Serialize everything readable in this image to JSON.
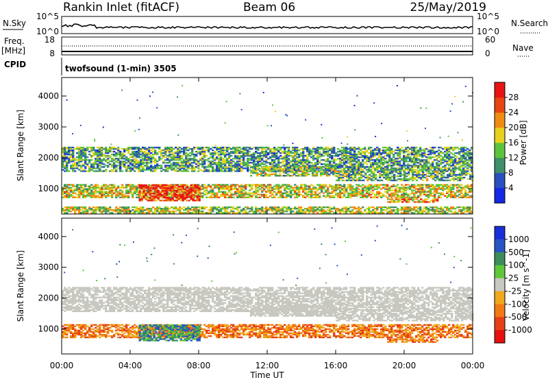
{
  "header": {
    "title": "Rankin Inlet (fitACF)",
    "beam": "Beam 06",
    "date": "25/May/2019"
  },
  "panels": {
    "nsky": {
      "left_label": "N.Sky",
      "left_ticks": [
        "10^5",
        "10^0"
      ],
      "right_label": "N.Search",
      "right_ticks": [
        "10^5",
        "10^0"
      ]
    },
    "freq": {
      "left_label_1": "Freq.",
      "left_label_2": "[MHz]",
      "left_ticks": [
        "18",
        "8"
      ],
      "right_label": "Nave",
      "right_ticks": [
        "60",
        "0"
      ]
    },
    "cpid": {
      "label": "CPID",
      "text": "twofsound (1-min) 3505"
    }
  },
  "colors": {
    "power_scale": [
      "#1428e6",
      "#2a4fc0",
      "#3f8f6a",
      "#5cc43c",
      "#e6d21e",
      "#f08c14",
      "#e64612",
      "#e61414"
    ],
    "velocity_scale": [
      "#1a2fd8",
      "#2755c4",
      "#3c8c5c",
      "#5ec83a",
      "#c8c8c0",
      "#f0a81c",
      "#f07a14",
      "#e64018",
      "#e61010"
    ],
    "ground_scatter": "#c8c8c0"
  },
  "chart_data": [
    {
      "type": "heatmap",
      "name": "Power",
      "x_ticks": [
        "00:00",
        "04:00",
        "08:00",
        "12:00",
        "16:00",
        "20:00",
        "00:00"
      ],
      "x_hours": [
        0,
        4,
        8,
        12,
        16,
        20,
        24
      ],
      "y_ticks": [
        1000,
        2000,
        3000,
        4000
      ],
      "ylabel": "Slant Range [km]",
      "ylim": [
        180,
        4600
      ],
      "xlim": [
        0,
        24
      ],
      "colorbar": {
        "label": "Power [dB]",
        "ticks": [
          "28",
          "24",
          "20",
          "16",
          "12",
          "8",
          "4"
        ],
        "range": [
          0,
          32
        ]
      },
      "bands": [
        {
          "t0": 0.0,
          "t1": 24.0,
          "r0": 1550,
          "r1": 2350,
          "level": 0.35
        },
        {
          "t0": 0.0,
          "t1": 24.0,
          "r0": 700,
          "r1": 1150,
          "level": 0.55
        },
        {
          "t0": 4.5,
          "t1": 8.0,
          "r0": 600,
          "r1": 1100,
          "level": 0.85
        },
        {
          "t0": 11.0,
          "t1": 16.0,
          "r0": 1400,
          "r1": 1700,
          "level": 0.45
        },
        {
          "t0": 16.0,
          "t1": 24.0,
          "r0": 1250,
          "r1": 1550,
          "level": 0.4
        },
        {
          "t0": 19.0,
          "t1": 22.0,
          "r0": 550,
          "r1": 650,
          "level": 0.7
        },
        {
          "t0": 0.0,
          "t1": 24.0,
          "r0": 200,
          "r1": 400,
          "level": 0.5
        }
      ]
    },
    {
      "type": "heatmap",
      "name": "Velocity",
      "x_ticks": [
        "00:00",
        "04:00",
        "08:00",
        "12:00",
        "16:00",
        "20:00",
        "00:00"
      ],
      "x_hours": [
        0,
        4,
        8,
        12,
        16,
        20,
        24
      ],
      "y_ticks": [
        1000,
        2000,
        3000,
        4000
      ],
      "ylabel": "Slant Range [km]",
      "xlabel": "Time UT",
      "ylim": [
        180,
        4600
      ],
      "xlim": [
        0,
        24
      ],
      "colorbar": {
        "label": "Velocity [m s^-1]",
        "ticks": [
          "1000",
          "500",
          "100",
          "25",
          "-25",
          "-100",
          "-500",
          "-1000"
        ]
      },
      "bands": [
        {
          "t0": 0.0,
          "t1": 24.0,
          "r0": 1550,
          "r1": 2350,
          "kind": "ground"
        },
        {
          "t0": 0.0,
          "t1": 24.0,
          "r0": 700,
          "r1": 1150,
          "kind": "neg"
        },
        {
          "t0": 4.5,
          "t1": 8.0,
          "r0": 600,
          "r1": 1100,
          "kind": "pos"
        },
        {
          "t0": 11.0,
          "t1": 16.0,
          "r0": 1400,
          "r1": 1700,
          "kind": "ground"
        },
        {
          "t0": 16.0,
          "t1": 24.0,
          "r0": 1250,
          "r1": 1550,
          "kind": "ground"
        },
        {
          "t0": 19.0,
          "t1": 22.0,
          "r0": 550,
          "r1": 650,
          "kind": "neg"
        }
      ]
    }
  ]
}
